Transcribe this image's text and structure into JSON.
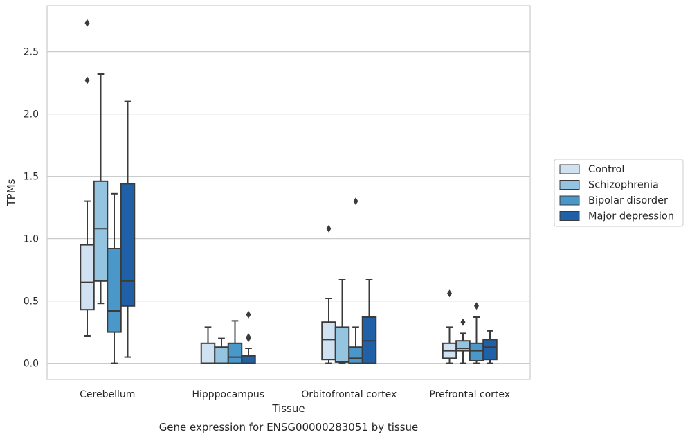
{
  "chart_data": {
    "type": "box",
    "caption": "Gene expression for ENSG00000283051 by tissue",
    "xlabel": "Tissue",
    "ylabel": "TPMs",
    "ylim": [
      -0.13,
      2.87
    ],
    "yticks": [
      "0.0",
      "0.5",
      "1.0",
      "1.5",
      "2.0",
      "2.5"
    ],
    "grid": "horizontal",
    "legend_position": "right",
    "colors": [
      "#d0e1f2",
      "#94c4df",
      "#4a98c9",
      "#2060a7"
    ],
    "edge_color": "#3b3b3b",
    "grid_color": "#cccccc",
    "categories": [
      "Cerebellum",
      "Hipppocampus",
      "Orbitofrontal cortex",
      "Prefrontal cortex"
    ],
    "series": [
      {
        "name": "Control",
        "boxes": [
          {
            "q1": 0.43,
            "median": 0.65,
            "q3": 0.95,
            "whislo": 0.22,
            "whishi": 1.3,
            "fliers": [
              2.27,
              2.73
            ]
          },
          {
            "q1": 0.0,
            "median": 0.0,
            "q3": 0.16,
            "whislo": 0.0,
            "whishi": 0.29,
            "fliers": []
          },
          {
            "q1": 0.03,
            "median": 0.19,
            "q3": 0.33,
            "whislo": 0.0,
            "whishi": 0.52,
            "fliers": [
              1.08
            ]
          },
          {
            "q1": 0.04,
            "median": 0.1,
            "q3": 0.16,
            "whislo": 0.0,
            "whishi": 0.29,
            "fliers": [
              0.56
            ]
          }
        ]
      },
      {
        "name": "Schizophrenia",
        "boxes": [
          {
            "q1": 0.66,
            "median": 1.08,
            "q3": 1.46,
            "whislo": 0.48,
            "whishi": 2.32,
            "fliers": []
          },
          {
            "q1": 0.0,
            "median": 0.0,
            "q3": 0.13,
            "whislo": 0.0,
            "whishi": 0.2,
            "fliers": []
          },
          {
            "q1": 0.01,
            "median": 0.01,
            "q3": 0.29,
            "whislo": 0.0,
            "whishi": 0.67,
            "fliers": []
          },
          {
            "q1": 0.1,
            "median": 0.12,
            "q3": 0.18,
            "whislo": 0.0,
            "whishi": 0.24,
            "fliers": [
              0.33
            ]
          }
        ]
      },
      {
        "name": "Bipolar disorder",
        "boxes": [
          {
            "q1": 0.25,
            "median": 0.42,
            "q3": 0.92,
            "whislo": 0.0,
            "whishi": 1.36,
            "fliers": []
          },
          {
            "q1": 0.0,
            "median": 0.05,
            "q3": 0.16,
            "whislo": 0.0,
            "whishi": 0.34,
            "fliers": []
          },
          {
            "q1": 0.0,
            "median": 0.04,
            "q3": 0.13,
            "whislo": 0.0,
            "whishi": 0.29,
            "fliers": [
              1.3
            ]
          },
          {
            "q1": 0.02,
            "median": 0.1,
            "q3": 0.16,
            "whislo": 0.0,
            "whishi": 0.37,
            "fliers": [
              0.46
            ]
          }
        ]
      },
      {
        "name": "Major depression",
        "boxes": [
          {
            "q1": 0.46,
            "median": 0.66,
            "q3": 1.44,
            "whislo": 0.05,
            "whishi": 2.1,
            "fliers": []
          },
          {
            "q1": 0.0,
            "median": 0.0,
            "q3": 0.06,
            "whislo": 0.0,
            "whishi": 0.12,
            "fliers": [
              0.2,
              0.21,
              0.39
            ]
          },
          {
            "q1": 0.0,
            "median": 0.18,
            "q3": 0.37,
            "whislo": 0.0,
            "whishi": 0.67,
            "fliers": []
          },
          {
            "q1": 0.03,
            "median": 0.13,
            "q3": 0.19,
            "whislo": 0.0,
            "whishi": 0.26,
            "fliers": []
          }
        ]
      }
    ]
  }
}
